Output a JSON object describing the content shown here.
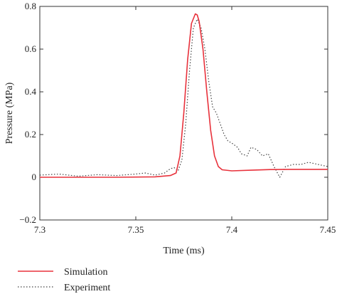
{
  "chart_data": {
    "type": "line",
    "xlabel": "Time (ms)",
    "ylabel": "Pressure (MPa)",
    "xlim": [
      7.3,
      7.45
    ],
    "ylim": [
      -0.2,
      0.8
    ],
    "xticks": [
      7.3,
      7.35,
      7.4,
      7.45
    ],
    "xtick_labels": [
      "7.3",
      "7.35",
      "7.4",
      "7.45"
    ],
    "yticks": [
      -0.2,
      0,
      0.2,
      0.4,
      0.6,
      0.8
    ],
    "ytick_labels": [
      "−0.2",
      "0",
      "0.2",
      "0.4",
      "0.6",
      "0.8"
    ],
    "grid": false,
    "legend_position": "bottom-left",
    "series": [
      {
        "name": "Simulation",
        "color": "#e8323c",
        "style": "solid",
        "x": [
          7.3,
          7.32,
          7.34,
          7.36,
          7.368,
          7.371,
          7.373,
          7.375,
          7.377,
          7.379,
          7.381,
          7.382,
          7.383,
          7.385,
          7.387,
          7.389,
          7.391,
          7.393,
          7.395,
          7.4,
          7.41,
          7.42,
          7.43,
          7.45
        ],
        "y": [
          0.0,
          0.0,
          0.0,
          0.002,
          0.008,
          0.02,
          0.1,
          0.3,
          0.55,
          0.72,
          0.765,
          0.76,
          0.73,
          0.6,
          0.4,
          0.22,
          0.1,
          0.05,
          0.035,
          0.03,
          0.033,
          0.036,
          0.037,
          0.037
        ]
      },
      {
        "name": "Experiment",
        "color": "#444444",
        "style": "dotted",
        "x": [
          7.3,
          7.31,
          7.32,
          7.33,
          7.34,
          7.35,
          7.355,
          7.36,
          7.365,
          7.368,
          7.37,
          7.372,
          7.374,
          7.376,
          7.378,
          7.38,
          7.382,
          7.384,
          7.386,
          7.388,
          7.39,
          7.392,
          7.394,
          7.396,
          7.398,
          7.4,
          7.403,
          7.405,
          7.408,
          7.41,
          7.413,
          7.416,
          7.419,
          7.422,
          7.425,
          7.428,
          7.432,
          7.436,
          7.44,
          7.445,
          7.45
        ],
        "y": [
          0.01,
          0.015,
          0.005,
          0.012,
          0.008,
          0.015,
          0.02,
          0.01,
          0.02,
          0.04,
          0.045,
          0.03,
          0.08,
          0.25,
          0.5,
          0.7,
          0.74,
          0.7,
          0.6,
          0.45,
          0.33,
          0.3,
          0.25,
          0.2,
          0.17,
          0.16,
          0.14,
          0.11,
          0.1,
          0.14,
          0.13,
          0.1,
          0.11,
          0.05,
          0.0,
          0.05,
          0.06,
          0.06,
          0.07,
          0.06,
          0.05
        ]
      }
    ]
  }
}
